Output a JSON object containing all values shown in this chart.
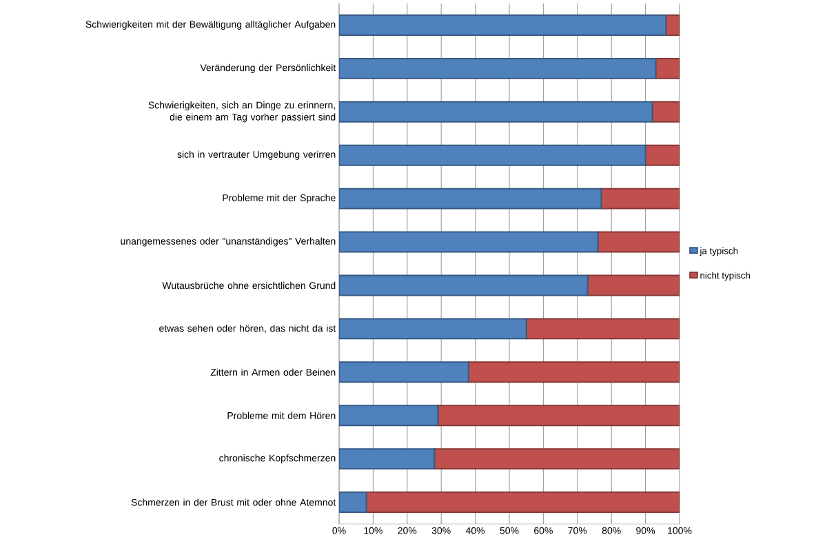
{
  "chart_data": {
    "type": "bar",
    "orientation": "horizontal",
    "stacked": true,
    "categories": [
      "Schwierigkeiten mit der Bewältigung alltäglicher Aufgaben",
      "Veränderung der Persönlichkeit",
      "Schwierigkeiten, sich an Dinge zu erinnern, die einem am Tag vorher passiert sind",
      "sich in vertrauter Umgebung verirren",
      "Probleme mit der Sprache",
      "unangemessenes oder \"unanständiges\" Verhalten",
      "Wutausbrüche ohne ersichtlichen Grund",
      "etwas sehen oder hören, das nicht da ist",
      "Zittern in Armen oder Beinen",
      "Probleme mit dem Hören",
      "chronische Kopfschmerzen",
      "Schmerzen in der Brust mit oder ohne Atemnot"
    ],
    "series": [
      {
        "name": "ja typisch",
        "color": "#4f81bd",
        "values": [
          96,
          93,
          92,
          90,
          77,
          76,
          73,
          55,
          38,
          29,
          28,
          8
        ]
      },
      {
        "name": "nicht typisch",
        "color": "#c0504d",
        "values": [
          4,
          7,
          8,
          10,
          23,
          24,
          27,
          45,
          62,
          71,
          72,
          92
        ]
      }
    ],
    "xlim": [
      0,
      100
    ],
    "xticks": [
      {
        "value": 0,
        "label": "0%"
      },
      {
        "value": 10,
        "label": "10%"
      },
      {
        "value": 20,
        "label": "20%"
      },
      {
        "value": 30,
        "label": "30%"
      },
      {
        "value": 40,
        "label": "40%"
      },
      {
        "value": 50,
        "label": "50%"
      },
      {
        "value": 60,
        "label": "60%"
      },
      {
        "value": 70,
        "label": "70%"
      },
      {
        "value": 80,
        "label": "80%"
      },
      {
        "value": 90,
        "label": "90%"
      },
      {
        "value": 100,
        "label": "100%"
      }
    ],
    "grid": "x",
    "legend": "right"
  }
}
